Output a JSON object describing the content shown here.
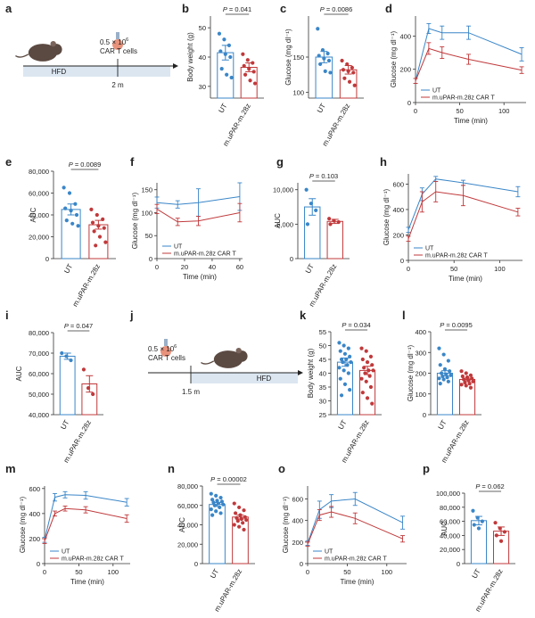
{
  "colors": {
    "ut": "#3a86c8",
    "car": "#c0393b",
    "axis": "#333333",
    "hfd_bar": "#dbe6f1",
    "mouse": "#5b4a42",
    "cell": "#e8927c"
  },
  "schematics": {
    "a": {
      "label": "a",
      "dose": "0.5 × 10",
      "dose_exp": "6",
      "cells_text": "CAR T cells",
      "diet": "HFD",
      "time": "2 m"
    },
    "j": {
      "label": "j",
      "dose": "0.5 × 10",
      "dose_exp": "6",
      "cells_text": "CAR T cells",
      "diet": "HFD",
      "time": "1.5 m"
    }
  },
  "chart_data": [
    {
      "id": "b",
      "panel_label": "b",
      "type": "bar",
      "ylabel": "Body weight (g)",
      "yticks": [
        30,
        40,
        50
      ],
      "ylim": [
        26,
        54
      ],
      "categories": [
        "UT",
        "m.uPAR-m.28z"
      ],
      "values": [
        41.5,
        36.5
      ],
      "errors": [
        2.5,
        1.5
      ],
      "p_text": "P = 0.041",
      "points": [
        [
          48,
          46,
          44,
          42,
          41,
          40,
          36,
          34,
          33
        ],
        [
          41,
          39,
          38,
          37,
          36,
          35,
          34,
          32,
          31
        ]
      ]
    },
    {
      "id": "c",
      "panel_label": "c",
      "type": "bar",
      "ylabel": "Glucose (mg dl⁻¹)",
      "ytick_labels": [
        "150",
        "100"
      ],
      "yticks": [
        150,
        100
      ],
      "ylim": [
        92,
        208
      ],
      "unit_sup": "-1",
      "categories": [
        "UT",
        "m.uPAR-m.28z"
      ],
      "values": [
        150,
        132
      ],
      "errors": [
        8,
        6
      ],
      "p_text": "P = 0.0086",
      "points": [
        [
          190,
          160,
          155,
          152,
          148,
          145,
          140,
          130,
          128
        ],
        [
          145,
          140,
          135,
          132,
          130,
          128,
          120,
          115,
          110
        ]
      ]
    },
    {
      "id": "d",
      "panel_label": "d",
      "type": "line",
      "ylabel": "Glucose (mg dl⁻¹)",
      "xlabel": "Time (min)",
      "xticks": [
        0,
        50,
        100
      ],
      "yticks": [
        0,
        200,
        400
      ],
      "xlim": [
        0,
        125
      ],
      "ylim": [
        0,
        520
      ],
      "x": [
        0,
        15,
        30,
        60,
        120
      ],
      "series": [
        {
          "name": "UT",
          "values": [
            130,
            445,
            420,
            420,
            290
          ],
          "errors": [
            15,
            30,
            40,
            40,
            40
          ]
        },
        {
          "name": "m.uPAR-m.28z CAR T",
          "values": [
            130,
            325,
            300,
            260,
            195
          ],
          "errors": [
            15,
            35,
            35,
            30,
            20
          ]
        }
      ]
    },
    {
      "id": "e",
      "panel_label": "e",
      "type": "bar",
      "ylabel": "AUC",
      "yticks": [
        0,
        20000,
        40000,
        60000,
        80000
      ],
      "ytick_labels": [
        "0",
        "20,000",
        "40,000",
        "60,000",
        "80,000"
      ],
      "ylim": [
        0,
        80000
      ],
      "categories": [
        "UT",
        "m.uPAR-m.28z"
      ],
      "values": [
        45000,
        31000
      ],
      "errors": [
        5000,
        4000
      ],
      "p_text": "P = 0.0089",
      "points": [
        [
          65000,
          60000,
          50000,
          46000,
          44000,
          40000,
          35000,
          32000,
          30000
        ],
        [
          45000,
          40000,
          36000,
          33000,
          30000,
          28000,
          25000,
          20000,
          15000,
          12000
        ]
      ]
    },
    {
      "id": "f",
      "panel_label": "f",
      "type": "line",
      "ylabel": "Glucose (mg dl⁻¹)",
      "xlabel": "Time (min)",
      "xticks": [
        0,
        20,
        40,
        60
      ],
      "yticks": [
        0,
        50,
        100,
        150
      ],
      "xlim": [
        0,
        62
      ],
      "ylim": [
        0,
        165
      ],
      "x": [
        0,
        15,
        30,
        60
      ],
      "series": [
        {
          "name": "UT",
          "values": [
            122,
            118,
            122,
            135
          ],
          "errors": [
            12,
            8,
            30,
            30
          ]
        },
        {
          "name": "m.uPAR-m.28z CAR T",
          "values": [
            108,
            80,
            82,
            100
          ],
          "errors": [
            10,
            8,
            10,
            20
          ]
        }
      ]
    },
    {
      "id": "g",
      "panel_label": "g",
      "type": "bar",
      "ylabel": "AUC",
      "yticks": [
        0,
        5000,
        10000
      ],
      "ytick_labels": [
        "0",
        "5,000",
        "10,000"
      ],
      "ylim": [
        0,
        11000
      ],
      "categories": [
        "UT",
        "m.uPAR-m.28z"
      ],
      "values": [
        7500,
        5400
      ],
      "errors": [
        1200,
        300
      ],
      "p_text": "P = 0.103",
      "points": [
        [
          10000,
          8000,
          7000,
          5000
        ],
        [
          5800,
          5500,
          5300,
          5000
        ]
      ]
    },
    {
      "id": "h",
      "panel_label": "h",
      "type": "line",
      "ylabel": "Glucose (mg dl⁻¹)",
      "xlabel": "Time (min)",
      "xticks": [
        0,
        50,
        100
      ],
      "yticks": [
        0,
        200,
        400,
        600
      ],
      "xlim": [
        0,
        125
      ],
      "ylim": [
        0,
        680
      ],
      "x": [
        0,
        15,
        30,
        60,
        120
      ],
      "series": [
        {
          "name": "UT",
          "values": [
            240,
            520,
            640,
            610,
            540
          ],
          "errors": [
            20,
            50,
            20,
            20,
            40
          ]
        },
        {
          "name": "m.uPAR-m.28z CAR T",
          "values": [
            170,
            460,
            540,
            510,
            380
          ],
          "errors": [
            20,
            80,
            80,
            80,
            30
          ]
        }
      ]
    },
    {
      "id": "i",
      "panel_label": "i",
      "type": "bar",
      "ylabel": "AUC",
      "yticks": [
        40000,
        50000,
        60000,
        70000,
        80000
      ],
      "ytick_labels": [
        "40,000",
        "50,000",
        "60,000",
        "70,000",
        "80,000"
      ],
      "ylim": [
        40000,
        80000
      ],
      "categories": [
        "UT",
        "m.uPAR-m.28z"
      ],
      "values": [
        68500,
        55000
      ],
      "errors": [
        1500,
        4000
      ],
      "p_text": "P = 0.047",
      "points": [
        [
          70000,
          68500,
          66500
        ],
        [
          62000,
          53000,
          50000
        ]
      ]
    },
    {
      "id": "k",
      "panel_label": "k",
      "type": "bar",
      "ylabel": "Body weight (g)",
      "yticks": [
        25,
        30,
        35,
        40,
        45,
        50,
        55
      ],
      "ylim": [
        25,
        55
      ],
      "categories": [
        "UT",
        "m.uPAR-m.28z"
      ],
      "values": [
        44,
        41
      ],
      "errors": [
        1.5,
        1.5
      ],
      "p_text": "P = 0.034",
      "points": [
        [
          51,
          50,
          49,
          48,
          47,
          46,
          45,
          45,
          44,
          44,
          43,
          42,
          41,
          40,
          38,
          36,
          34,
          32
        ],
        [
          49,
          48,
          46,
          45,
          44,
          43,
          42,
          41,
          41,
          40,
          39,
          38,
          37,
          35,
          33,
          31,
          29
        ]
      ]
    },
    {
      "id": "l",
      "panel_label": "l",
      "type": "bar",
      "ylabel": "Glucose (mg dl⁻¹)",
      "yticks": [
        0,
        100,
        200,
        300,
        400
      ],
      "ylim": [
        0,
        400
      ],
      "categories": [
        "UT",
        "m.uPAR-m.28z"
      ],
      "values": [
        200,
        170
      ],
      "errors": [
        12,
        6
      ],
      "p_text": "P = 0.0095",
      "points": [
        [
          320,
          290,
          260,
          240,
          220,
          210,
          200,
          195,
          190,
          185,
          180,
          175,
          170,
          160,
          150
        ],
        [
          210,
          200,
          190,
          185,
          180,
          175,
          170,
          165,
          160,
          155,
          150,
          145,
          140,
          130
        ]
      ]
    },
    {
      "id": "m",
      "panel_label": "m",
      "type": "line",
      "ylabel": "Glucose (mg dl⁻¹)",
      "xlabel": "Time (min)",
      "xticks": [
        0,
        50,
        100
      ],
      "yticks": [
        0,
        200,
        400,
        600
      ],
      "xlim": [
        0,
        125
      ],
      "ylim": [
        0,
        620
      ],
      "x": [
        0,
        15,
        30,
        60,
        120
      ],
      "series": [
        {
          "name": "UT",
          "values": [
            190,
            530,
            550,
            545,
            490
          ],
          "errors": [
            20,
            30,
            25,
            30,
            30
          ]
        },
        {
          "name": "m.uPAR-m.28z CAR T",
          "values": [
            180,
            400,
            440,
            430,
            360
          ],
          "errors": [
            20,
            20,
            20,
            25,
            30
          ]
        }
      ]
    },
    {
      "id": "n",
      "panel_label": "n",
      "type": "bar",
      "ylabel": "AUC",
      "yticks": [
        0,
        20000,
        40000,
        60000,
        80000
      ],
      "ytick_labels": [
        "0",
        "20,000",
        "40,000",
        "60,000",
        "80,000"
      ],
      "ylim": [
        0,
        80000
      ],
      "categories": [
        "UT",
        "m.uPAR-m.28z"
      ],
      "values": [
        61000,
        48000
      ],
      "errors": [
        2000,
        2000
      ],
      "p_text": "P = 0.00002",
      "points": [
        [
          72000,
          70000,
          68000,
          66000,
          65000,
          64000,
          63000,
          62000,
          61000,
          60000,
          58000,
          56000,
          54000,
          52000,
          50000
        ],
        [
          62000,
          58000,
          55000,
          52000,
          50000,
          48000,
          47000,
          46000,
          45000,
          44000,
          42000,
          40000,
          38000,
          35000
        ]
      ]
    },
    {
      "id": "o",
      "panel_label": "o",
      "type": "line",
      "ylabel": "Glucose (mg dl⁻¹)",
      "xlabel": "Time (min)",
      "xticks": [
        0,
        50,
        100
      ],
      "yticks": [
        0,
        200,
        400,
        600
      ],
      "xlim": [
        0,
        125
      ],
      "ylim": [
        0,
        720
      ],
      "x": [
        0,
        15,
        30,
        60,
        120
      ],
      "series": [
        {
          "name": "UT",
          "values": [
            190,
            500,
            580,
            600,
            380
          ],
          "errors": [
            20,
            80,
            60,
            60,
            60
          ]
        },
        {
          "name": "m.uPAR-m.28z CAR T",
          "values": [
            180,
            450,
            480,
            420,
            230
          ],
          "errors": [
            20,
            50,
            50,
            50,
            30
          ]
        }
      ]
    },
    {
      "id": "p",
      "panel_label": "p",
      "type": "bar",
      "ylabel": "AUC",
      "yticks": [
        0,
        20000,
        40000,
        60000,
        80000,
        100000
      ],
      "ytick_labels": [
        "0",
        "20,000",
        "40,000",
        "60,000",
        "80,000",
        "100,000"
      ],
      "ylim": [
        0,
        100000
      ],
      "categories": [
        "UT",
        "m.uPAR-m.28z"
      ],
      "values": [
        61000,
        46000
      ],
      "errors": [
        6000,
        6000
      ],
      "p_text": "P = 0.062",
      "points": [
        [
          75000,
          65000,
          60000,
          55000,
          50000
        ],
        [
          58000,
          50000,
          45000,
          40000,
          32000
        ]
      ]
    }
  ]
}
